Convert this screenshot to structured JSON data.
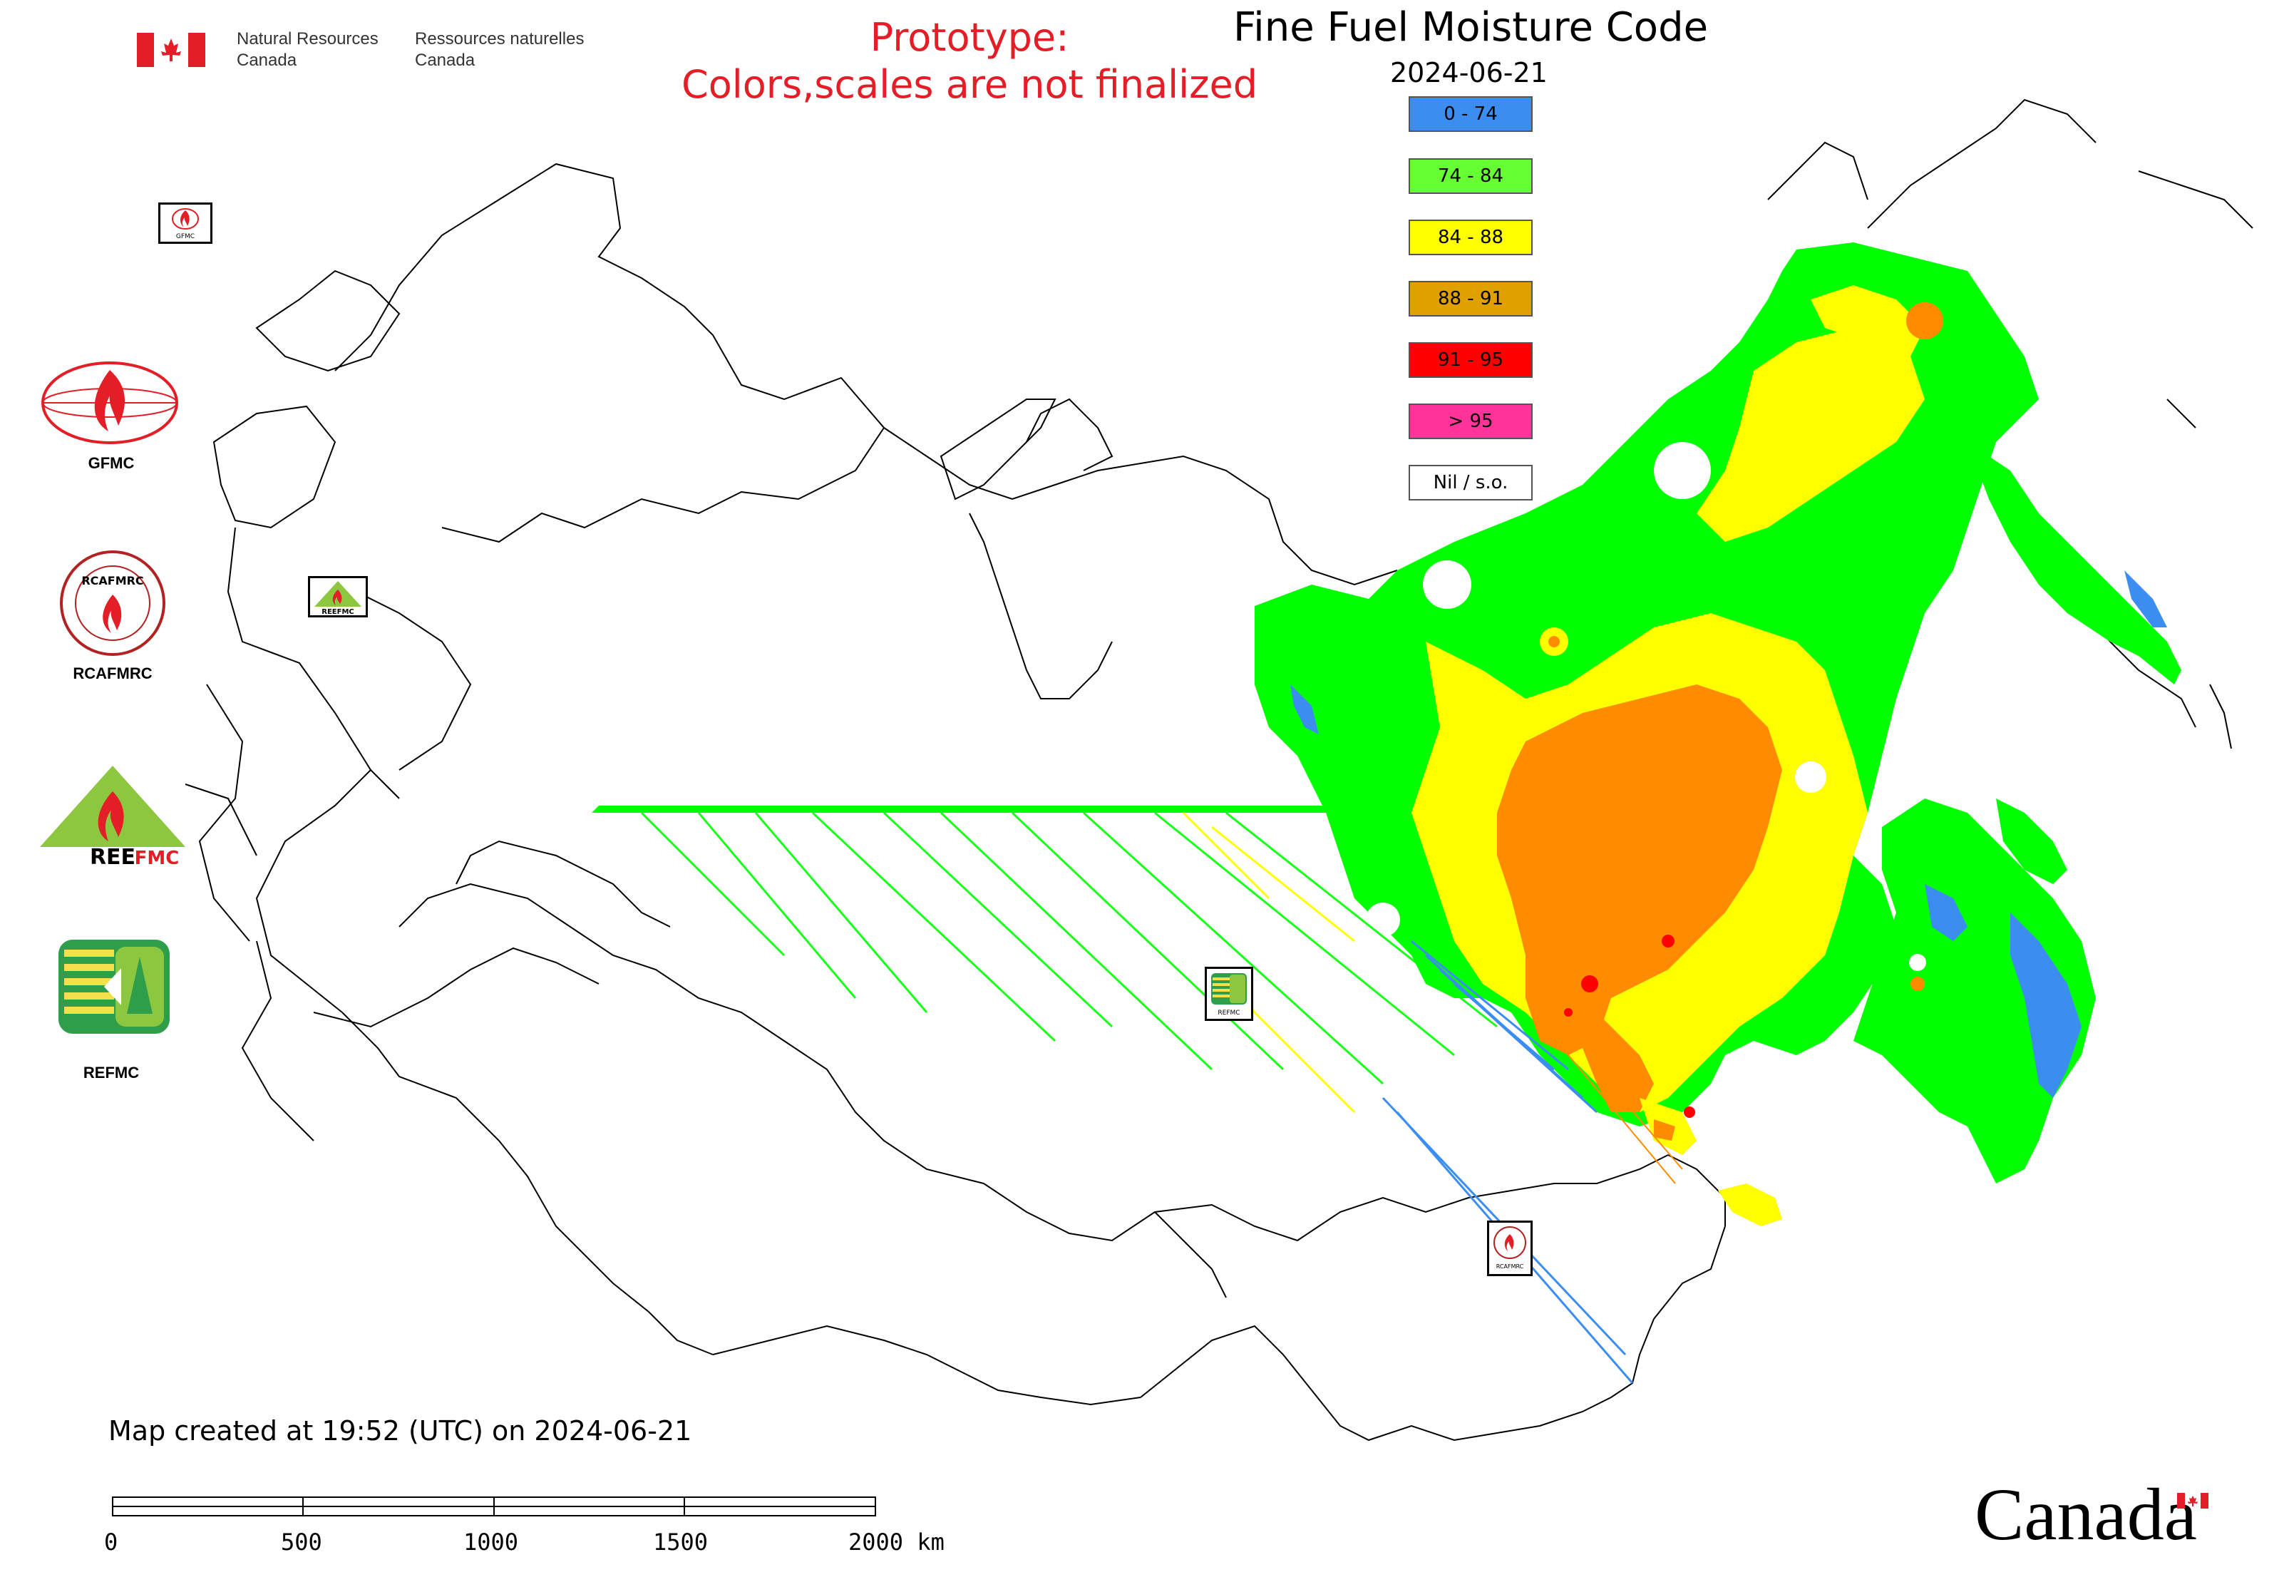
{
  "header": {
    "dept_en_line1": "Natural Resources",
    "dept_en_line2": "Canada",
    "dept_fr_line1": "Ressources naturelles",
    "dept_fr_line2": "Canada",
    "prototype_line1": "Prototype:",
    "prototype_line2": "Colors,scales are not finalized",
    "title": "Fine Fuel Moisture Code",
    "date": "2024-06-21"
  },
  "legend": [
    {
      "label": "0 - 74",
      "color": "#3b8ef0"
    },
    {
      "label": "74 - 84",
      "color": "#66ff33"
    },
    {
      "label": "84 - 88",
      "color": "#ffff00"
    },
    {
      "label": "88 - 91",
      "color": "#e0a000"
    },
    {
      "label": "91 - 95",
      "color": "#ff0000"
    },
    {
      "label": "> 95",
      "color": "#ff3399"
    },
    {
      "label": "Nil / s.o.",
      "color": "#ffffff"
    }
  ],
  "logos": {
    "gfmc": "GFMC",
    "rcafmrc": "RCAFMRC",
    "reefmc": "REEFMC",
    "refmc": "REFMC",
    "map_marker_gfmc": "GFMC",
    "map_marker_refmc": "REFMC",
    "map_marker_rcafmrc": "RCAFMRC"
  },
  "footer": {
    "created": "Map created at 19:52 (UTC) on 2024-06-21",
    "scale_labels": [
      "0",
      "500",
      "1000",
      "1500",
      "2000 km"
    ],
    "canada_wordmark": "Canada"
  },
  "colors": {
    "low": "#3b8ef0",
    "moderate": "#00ff00",
    "high": "#ffff00",
    "very_high": "#ff8c00",
    "extreme": "#ff0000",
    "border": "#000000",
    "prototype_text": "#e41e26"
  }
}
